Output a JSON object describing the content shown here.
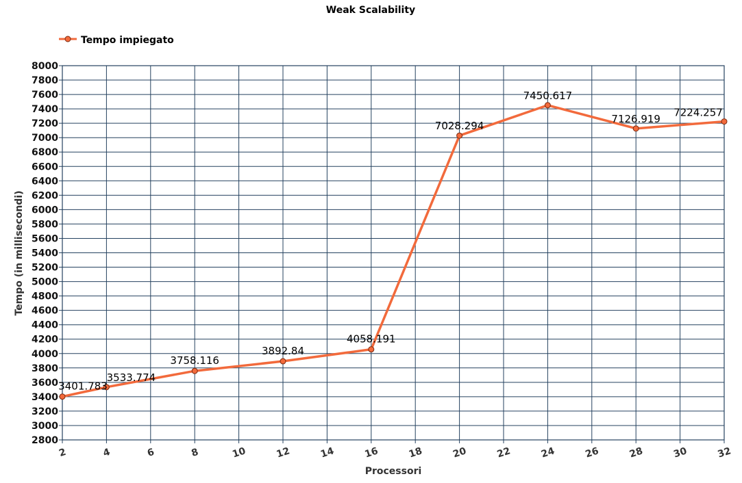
{
  "chart_data": {
    "type": "line",
    "title": "Weak Scalability",
    "xlabel": "Processori",
    "ylabel": "Tempo (in millisecondi)",
    "xlim": [
      2,
      32
    ],
    "ylim": [
      2800,
      8000
    ],
    "x_ticks": [
      2,
      4,
      6,
      8,
      10,
      12,
      14,
      16,
      18,
      20,
      22,
      24,
      26,
      28,
      30,
      32
    ],
    "y_tick_step": 200,
    "grid": true,
    "legend_position": "top-left",
    "series": [
      {
        "name": "Tempo impiegato",
        "color": "#f26a3c",
        "x": [
          2,
          4,
          8,
          12,
          16,
          20,
          24,
          28,
          32
        ],
        "y": [
          3401.783,
          3533.774,
          3758.116,
          3892.84,
          4058.191,
          7028.294,
          7450.617,
          7126.919,
          7224.257
        ],
        "labels": [
          "3401.783",
          "3533.774",
          "3758.116",
          "3892.84",
          "4058.191",
          "7028.294",
          "7450.617",
          "7126.919",
          "7224.257"
        ]
      }
    ]
  }
}
